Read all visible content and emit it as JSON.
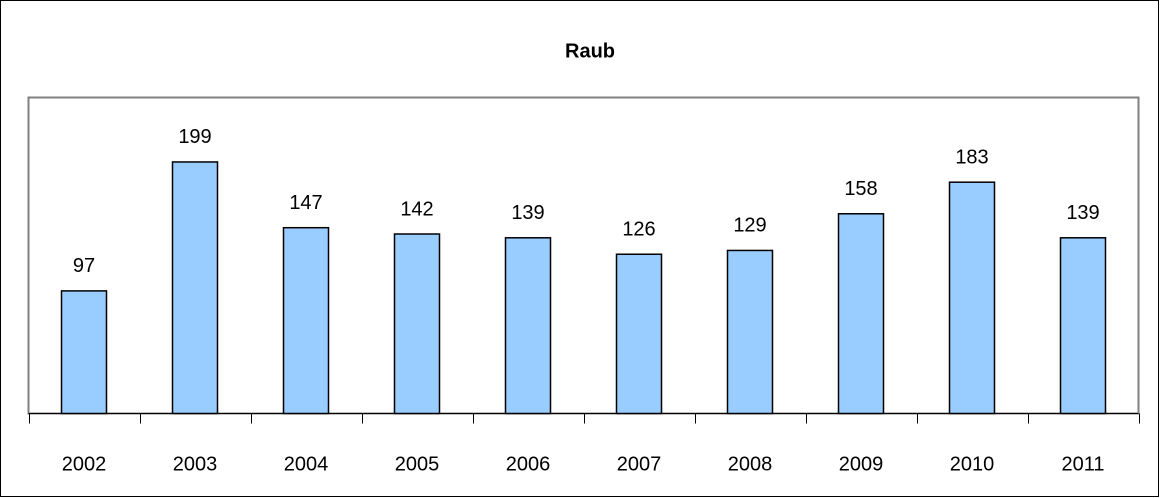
{
  "chart_data": {
    "type": "bar",
    "title": "Raub",
    "categories": [
      "2002",
      "2003",
      "2004",
      "2005",
      "2006",
      "2007",
      "2008",
      "2009",
      "2010",
      "2011"
    ],
    "values": [
      97,
      199,
      147,
      142,
      139,
      126,
      129,
      158,
      183,
      139
    ],
    "color": "#99ccff",
    "ylim": [
      0,
      250
    ]
  }
}
